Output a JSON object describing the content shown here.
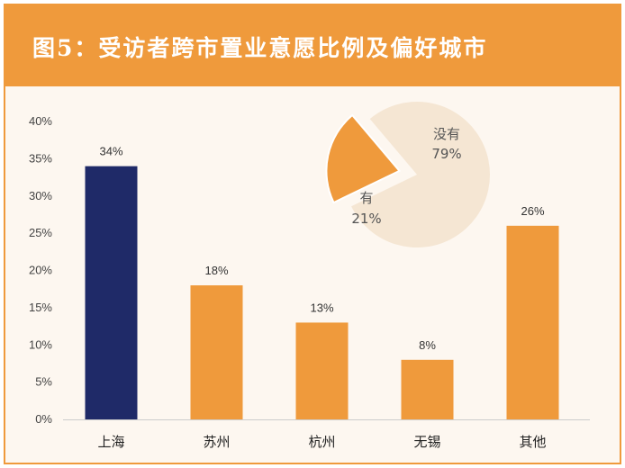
{
  "title": "图5：受访者跨市置业意愿比例及偏好城市",
  "colors": {
    "header": "#ef9a3c",
    "bar_highlight": "#1f2a68",
    "bar_default": "#ef9a3c",
    "pie_yes": "#ef9a3c",
    "pie_no": "#f5e6d3",
    "background": "#fdf7f0"
  },
  "chart_data": [
    {
      "type": "bar",
      "categories": [
        "上海",
        "苏州",
        "杭州",
        "无锡",
        "其他"
      ],
      "values": [
        34,
        18,
        13,
        8,
        26
      ],
      "data_labels": [
        "34%",
        "18%",
        "13%",
        "8%",
        "26%"
      ],
      "highlight_index": 0,
      "yticks": [
        "0%",
        "5%",
        "10%",
        "15%",
        "20%",
        "25%",
        "30%",
        "35%",
        "40%"
      ],
      "ylim": [
        0,
        40
      ],
      "grid": false
    },
    {
      "type": "pie",
      "slices": [
        {
          "label": "有",
          "value_label": "21%",
          "value": 21,
          "exploded": true
        },
        {
          "label": "没有",
          "value_label": "79%",
          "value": 79,
          "exploded": false
        }
      ]
    }
  ]
}
